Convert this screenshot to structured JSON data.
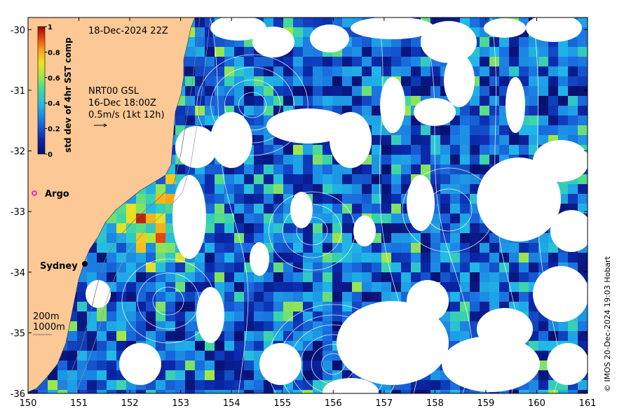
{
  "map": {
    "timestamp": "18-Dec-2024 22Z",
    "model_info": [
      "NRT00 GSL",
      "16-Dec 18:00Z",
      "0.5m/s (1kt 12h)"
    ],
    "colorbar": {
      "label": "std dev of 4hr SST comp",
      "min": 0,
      "max": 1,
      "tick_labels": [
        "0",
        "0.2",
        "0.4",
        "0.6",
        "0.8",
        "1"
      ]
    },
    "x_ticks": [
      "150",
      "151",
      "152",
      "153",
      "154",
      "155",
      "156",
      "157",
      "158",
      "159",
      "160",
      "161"
    ],
    "y_ticks": [
      "-30",
      "-31",
      "-32",
      "-33",
      "-34",
      "-35",
      "-36"
    ],
    "x_range": [
      150,
      161
    ],
    "y_range": [
      -36,
      -29.8
    ],
    "places": [
      {
        "name": "Argo",
        "lon": 150.15,
        "lat": -32.75,
        "marker": "magenta-circle"
      },
      {
        "name": "Sydney",
        "lon": 151.2,
        "lat": -33.9,
        "marker": "black-dot"
      }
    ],
    "isobaths": [
      "200m",
      "1000m"
    ],
    "credit": "© IMOS 20-Dec-2024 19:03 Hobart",
    "colors": {
      "land": "#fcc896",
      "low": "#0a1a8c",
      "mid": "#20b0e0",
      "high": "#e02a10",
      "contour": "#ffffff",
      "argo": "#e000e0"
    }
  }
}
